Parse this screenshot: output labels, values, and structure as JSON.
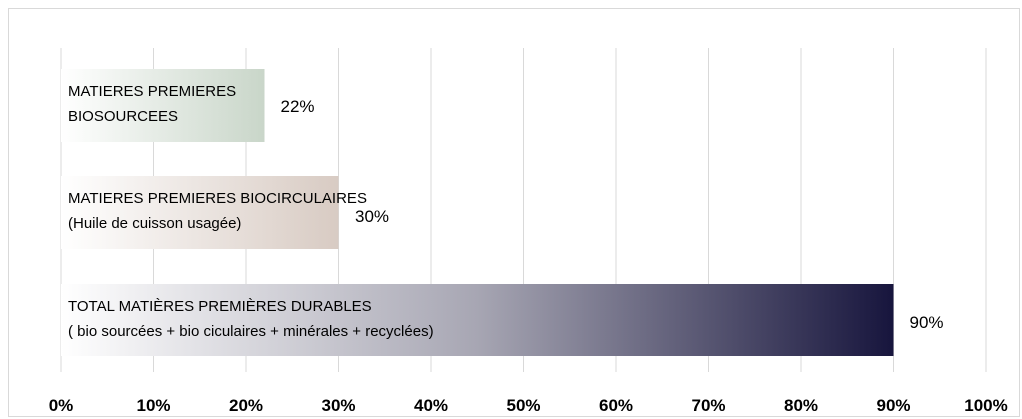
{
  "chart_data": {
    "type": "bar",
    "orientation": "horizontal",
    "xlim": [
      0,
      100
    ],
    "grid": true,
    "x_ticks": [
      "0%",
      "10%",
      "20%",
      "30%",
      "40%",
      "50%",
      "60%",
      "70%",
      "80%",
      "90%",
      "100%"
    ],
    "bars": [
      {
        "label_lines": [
          "MATIERES PREMIERES",
          "BIOSOURCEES"
        ],
        "value": 22,
        "value_label": "22%",
        "colors": [
          "#ffffff",
          "#c9d6c9"
        ]
      },
      {
        "label_lines": [
          "MATIERES PREMIERES BIOCIRCULAIRES",
          "(Huile de cuisson usagée)"
        ],
        "value": 30,
        "value_label": "30%",
        "colors": [
          "#ffffff",
          "#d8cbc3"
        ]
      },
      {
        "label_lines": [
          "TOTAL MATIÈRES PREMIÈRES DURABLES",
          "( bio sourcées + bio ciculaires + minérales + recyclées)"
        ],
        "value": 90,
        "value_label": "90%",
        "colors": [
          "#ffffff",
          "#a7a6b3",
          "#17153d"
        ]
      }
    ]
  }
}
